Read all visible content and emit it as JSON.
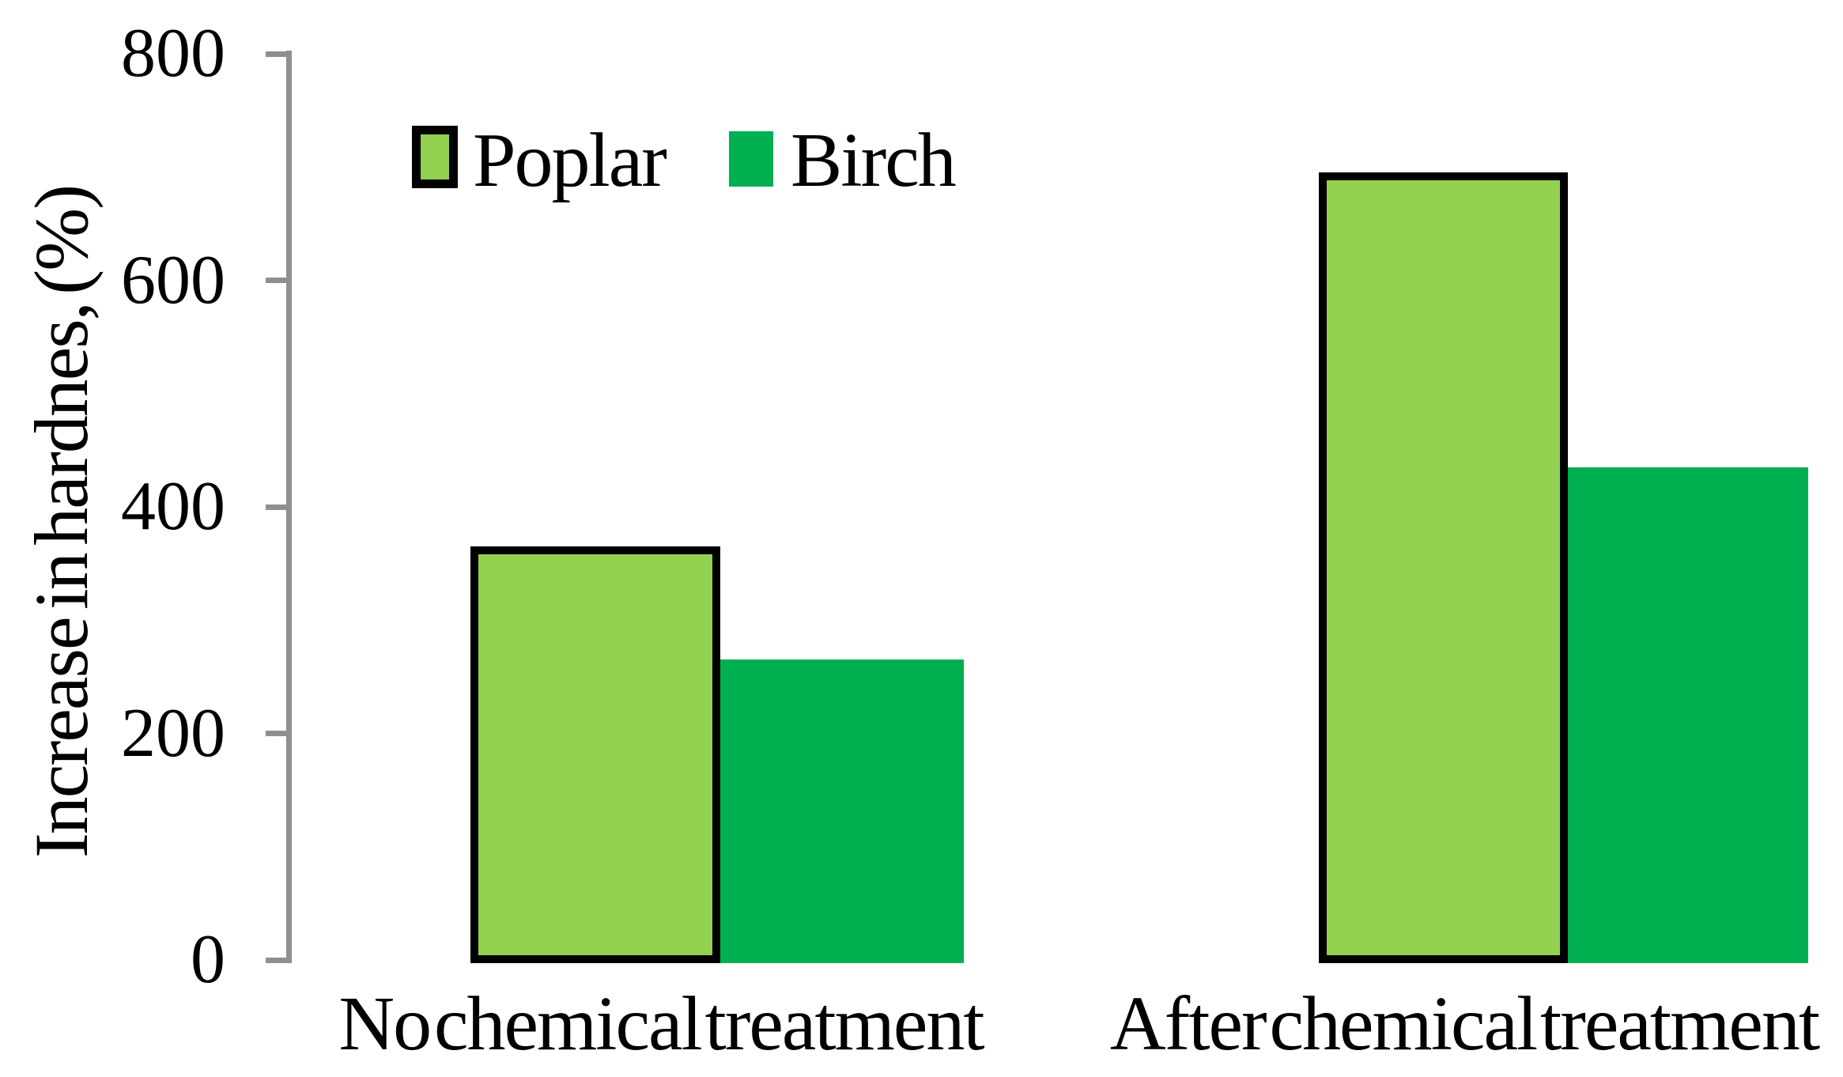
{
  "chart_data": {
    "type": "bar",
    "title": "",
    "ylabel": "Increase in hardnes, (%)",
    "xlabel": "",
    "categories": [
      "No chemical treatment",
      "After chemical treatment"
    ],
    "series": [
      {
        "name": "Poplar",
        "values": [
          365,
          695
        ],
        "fill": "#92D050",
        "border_color": "#000000"
      },
      {
        "name": "Birch",
        "values": [
          265,
          435
        ],
        "fill": "#00B050",
        "border_color": null
      }
    ],
    "yticks": [
      0,
      200,
      400,
      600,
      800
    ],
    "ylim": [
      0,
      800
    ],
    "grid": false,
    "legend_position": "top-left-inside",
    "axis_color": "#8F8F8F",
    "text_color": "#000000",
    "background_color": "#FFFFFF"
  }
}
